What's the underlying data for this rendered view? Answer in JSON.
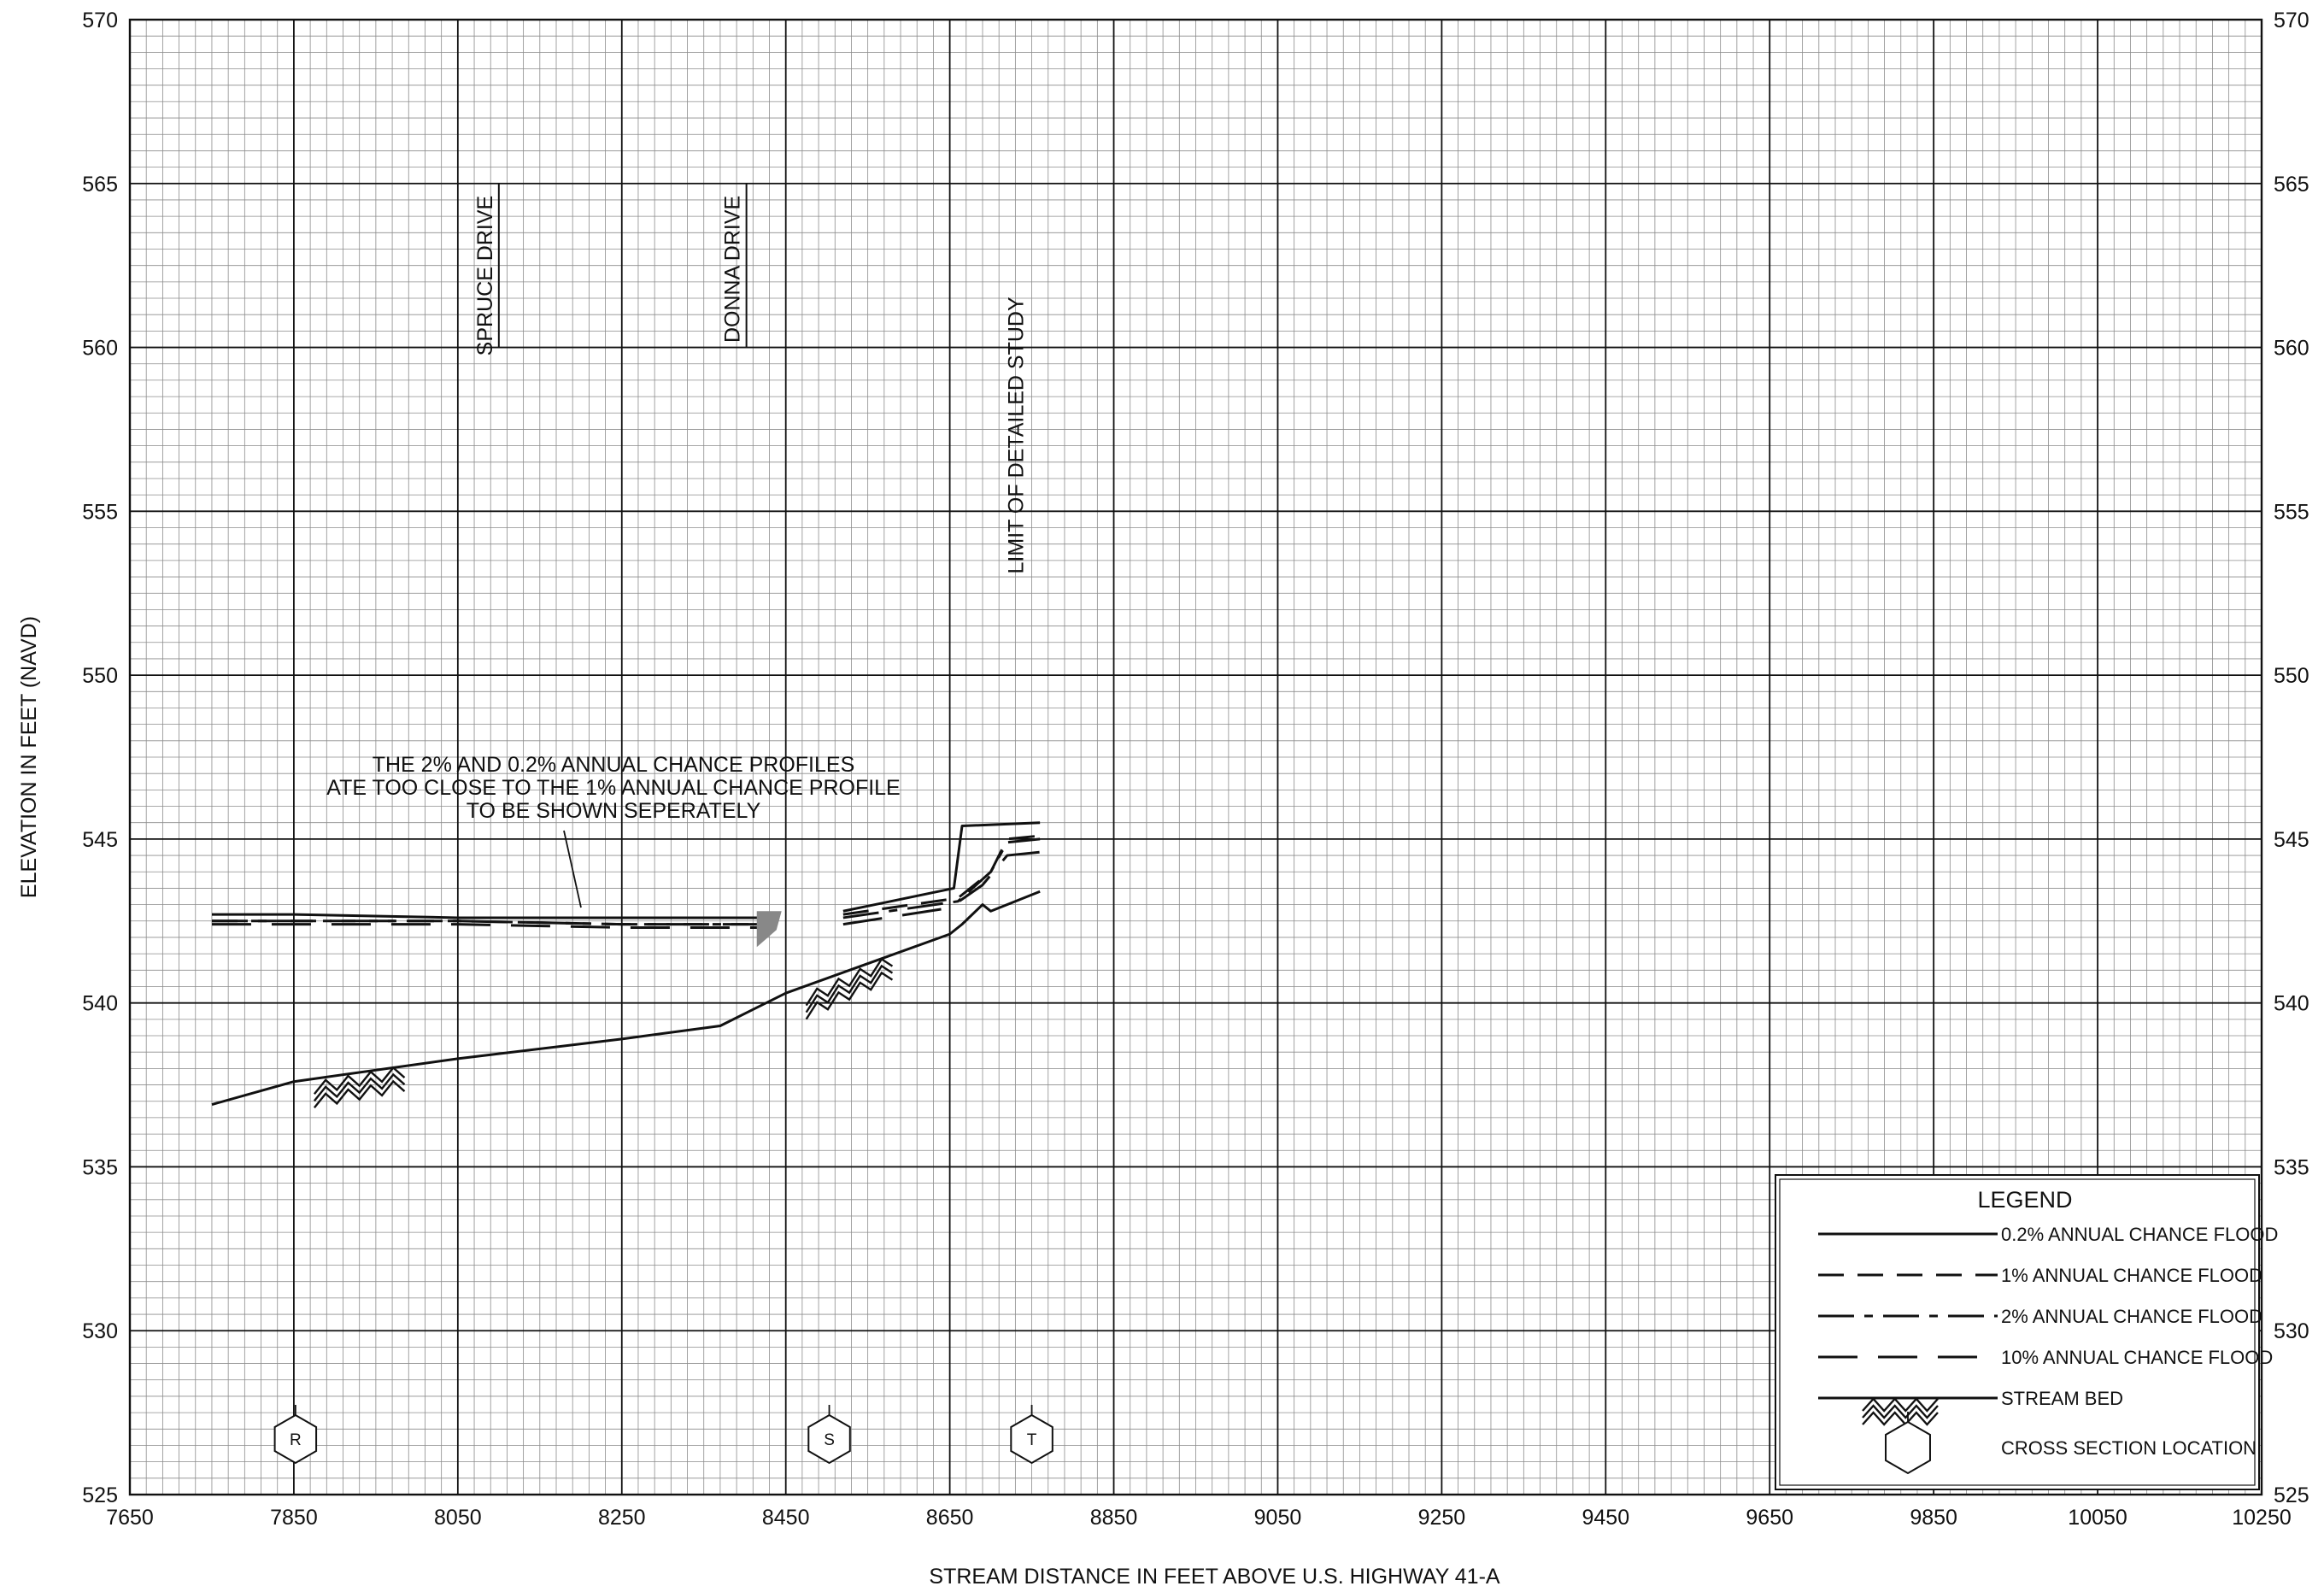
{
  "chart_data": {
    "type": "line",
    "xlabel": "STREAM DISTANCE IN FEET ABOVE U.S. HIGHWAY 41-A",
    "ylabel": "ELEVATION IN FEET (NAVD)",
    "xlim": [
      7650,
      10250
    ],
    "ylim": [
      525,
      570
    ],
    "x_ticks": [
      7650,
      7850,
      8050,
      8250,
      8450,
      8650,
      8850,
      9050,
      9250,
      9450,
      9650,
      9850,
      10050,
      10250
    ],
    "y_ticks": [
      525,
      530,
      535,
      540,
      545,
      550,
      555,
      560,
      565,
      570
    ],
    "grid": true,
    "minor_grid_x_step": 20,
    "minor_grid_y_step": 0.5,
    "series": [
      {
        "name": "0.2% ANNUAL CHANCE FLOOD",
        "style": "solid",
        "x": [
          7750,
          7850,
          8050,
          8250,
          8420
        ],
        "y": [
          542.7,
          542.7,
          542.6,
          542.6,
          542.6
        ],
        "segments": [
          {
            "x": [
              8520,
              8655,
              8665,
              8760
            ],
            "y": [
              542.8,
              543.5,
              545.4,
              545.5
            ]
          }
        ]
      },
      {
        "name": "1% ANNUAL CHANCE FLOOD",
        "style": "short-dash",
        "x": [
          7750,
          7850,
          8050,
          8250,
          8420
        ],
        "y": [
          542.5,
          542.5,
          542.5,
          542.4,
          542.4
        ],
        "segments": [
          {
            "x": [
              8520,
              8660,
              8700,
              8720,
              8760
            ],
            "y": [
              542.7,
              543.2,
              544.0,
              545.0,
              545.1
            ]
          }
        ]
      },
      {
        "name": "2% ANNUAL CHANCE FLOOD",
        "style": "dash-dot",
        "x": [
          7750,
          7850,
          8050,
          8250,
          8420
        ],
        "y": [
          542.5,
          542.5,
          542.5,
          542.4,
          542.4
        ],
        "segments": [
          {
            "x": [
              8520,
              8660,
              8700,
              8720,
              8760
            ],
            "y": [
              542.6,
              543.1,
              544.0,
              544.9,
              545.0
            ]
          }
        ]
      },
      {
        "name": "10% ANNUAL CHANCE FLOOD",
        "style": "long-dash",
        "x": [
          7750,
          7850,
          8050,
          8250,
          8420
        ],
        "y": [
          542.4,
          542.4,
          542.4,
          542.3,
          542.3
        ],
        "segments": [
          {
            "x": [
              8520,
              8650,
              8690,
              8720,
              8760
            ],
            "y": [
              542.4,
              542.9,
              543.6,
              544.5,
              544.6
            ]
          }
        ]
      },
      {
        "name": "STREAM BED",
        "style": "solid",
        "x": [
          7750,
          7850,
          8050,
          8250,
          8370,
          8450,
          8650,
          8665,
          8690,
          8700,
          8760
        ],
        "y": [
          536.9,
          537.6,
          538.3,
          538.9,
          539.3,
          540.3,
          542.1,
          542.4,
          543.0,
          542.8,
          543.4
        ]
      }
    ],
    "stream_bed_hatches": [
      {
        "x": [
          7875,
          7985
        ],
        "y": [
          537.3,
          537.8
        ]
      },
      {
        "x": [
          8475,
          8580
        ],
        "y": [
          540.0,
          541.2
        ]
      }
    ],
    "cross_sections": [
      {
        "label": "R",
        "x": 7852
      },
      {
        "label": "S",
        "x": 8503
      },
      {
        "label": "T",
        "x": 8750
      }
    ],
    "roads": [
      {
        "label": "SPRUCE DRIVE",
        "x": 8100,
        "y_top": 565,
        "y_bottom": 560
      },
      {
        "label": "DONNA DRIVE",
        "x": 8402,
        "y_top": 565,
        "y_bottom": 560
      }
    ],
    "limit_label": "LIMIT OF DETAILED STUDY",
    "limit_x": 8730,
    "note_lines": [
      "THE 2% AND 0.2% ANNUAL CHANCE PROFILES",
      "ATE TOO CLOSE TO THE 1% ANNUAL CHANCE PROFILE",
      "TO BE SHOWN SEPERATELY"
    ],
    "legend": {
      "title": "LEGEND",
      "placement": "bottom-right",
      "items": [
        "0.2% ANNUAL CHANCE FLOOD",
        "1% ANNUAL CHANCE FLOOD",
        "2% ANNUAL CHANCE FLOOD",
        "10% ANNUAL CHANCE FLOOD",
        "STREAM BED",
        "CROSS SECTION LOCATION"
      ]
    }
  }
}
